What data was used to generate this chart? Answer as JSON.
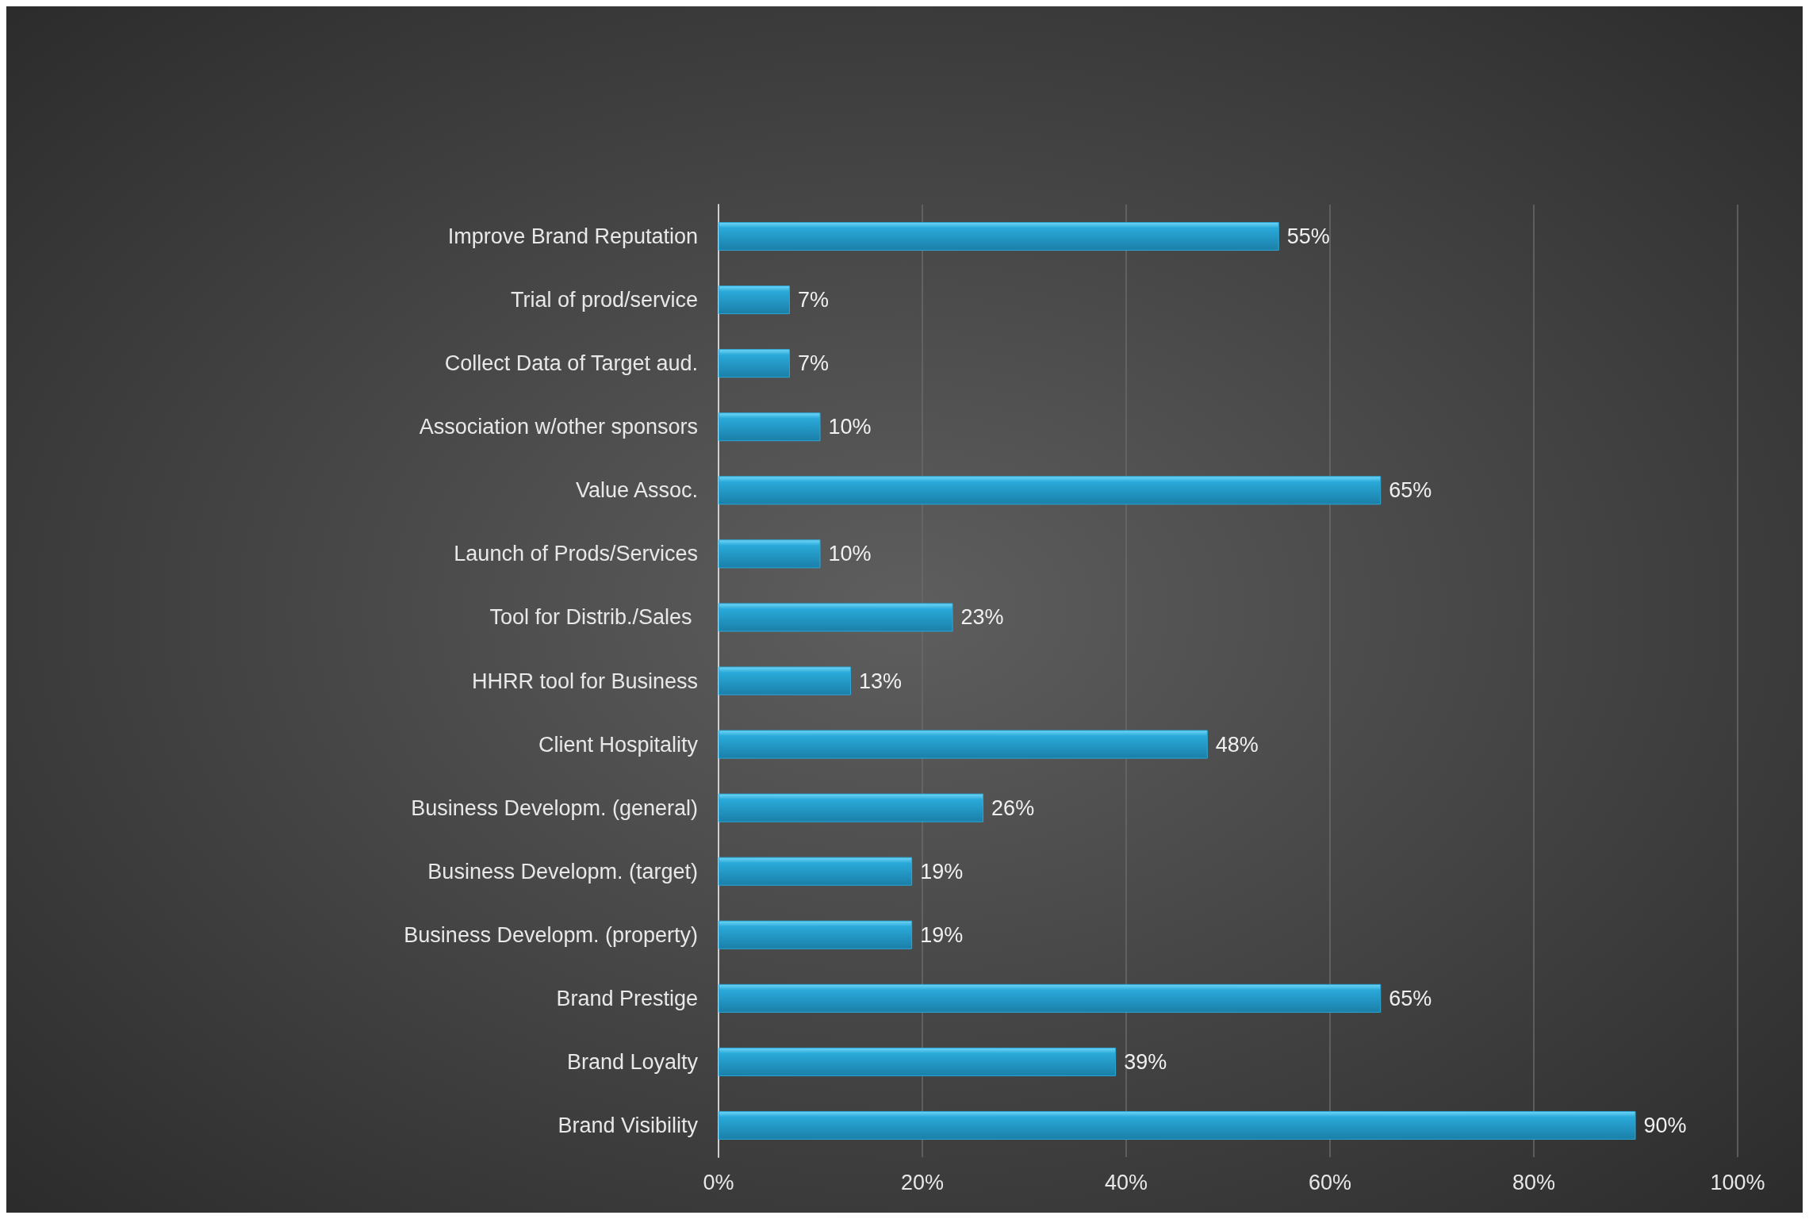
{
  "chart_data": {
    "type": "bar",
    "orientation": "horizontal",
    "categories": [
      "Improve Brand Reputation",
      "Trial of prod/service",
      "Collect Data of Target aud.",
      "Association w/other sponsors",
      "Value Assoc.",
      "Launch of Prods/Services",
      "Tool for Distrib./Sales ",
      "HHRR tool for Business",
      "Client Hospitality",
      "Business Developm. (general)",
      "Business Developm. (target)",
      "Business Developm. (property)",
      "Brand Prestige",
      "Brand Loyalty",
      "Brand Visibility"
    ],
    "values": [
      55,
      7,
      7,
      10,
      65,
      10,
      23,
      13,
      48,
      26,
      19,
      19,
      65,
      39,
      90
    ],
    "value_labels": [
      "55%",
      "7%",
      "7%",
      "10%",
      "65%",
      "10%",
      "23%",
      "13%",
      "48%",
      "26%",
      "19%",
      "19%",
      "65%",
      "39%",
      "90%"
    ],
    "color": "#2aa9d9",
    "xlim": [
      0,
      100
    ],
    "xticks": [
      {
        "value": 0,
        "label": "0%"
      },
      {
        "value": 20,
        "label": "20%"
      },
      {
        "value": 40,
        "label": "40%"
      },
      {
        "value": 60,
        "label": "60%"
      },
      {
        "value": 80,
        "label": "80%"
      },
      {
        "value": 100,
        "label": "100%"
      }
    ],
    "grid": "x"
  }
}
